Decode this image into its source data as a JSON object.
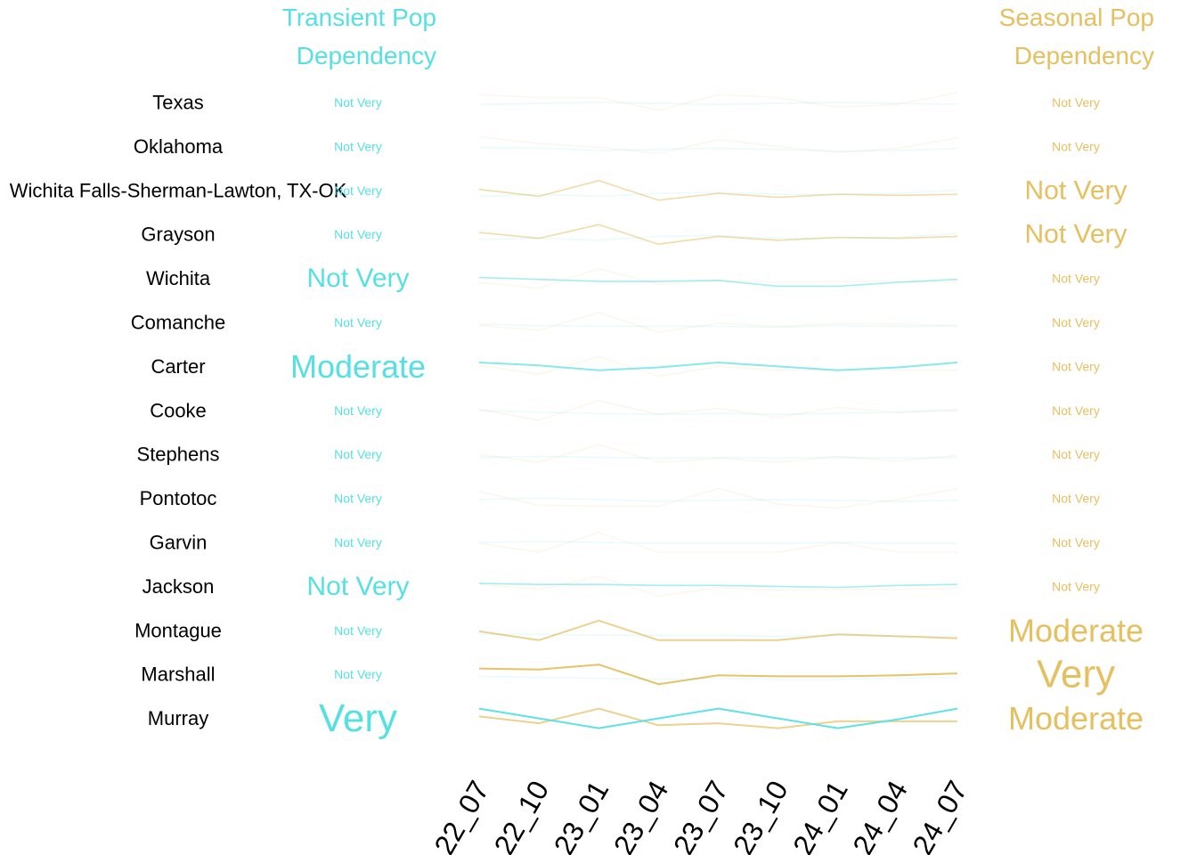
{
  "headers": {
    "transient_line1": "Transient Pop",
    "transient_line2": "Dependency",
    "seasonal_line1": "Seasonal Pop",
    "seasonal_line2": "Dependency"
  },
  "colors": {
    "transient": "#55e0e3",
    "seasonal": "#e6bf5f",
    "region_text": "#000000",
    "background": "#ffffff"
  },
  "chart_data": {
    "type": "line",
    "x": [
      "22_07",
      "22_10",
      "23_01",
      "23_04",
      "23_07",
      "23_10",
      "24_01",
      "24_04",
      "24_07"
    ],
    "legend": "none",
    "grid": false,
    "rows": [
      {
        "region": "Texas",
        "transient_label": "Not Very",
        "seasonal_label": "Not Very",
        "transient": [
          0.4,
          0.45,
          0.5,
          0.45,
          0.4,
          0.45,
          0.5,
          0.45,
          0.4
        ],
        "seasonal": [
          0.9,
          0.75,
          0.75,
          0.1,
          0.9,
          0.75,
          0.25,
          0.4,
          1.0
        ]
      },
      {
        "region": "Oklahoma",
        "transient_label": "Not Very",
        "seasonal_label": "Not Very",
        "transient": [
          0.45,
          0.4,
          0.3,
          0.35,
          0.4,
          0.35,
          0.25,
          0.3,
          0.4
        ],
        "seasonal": [
          1.0,
          0.65,
          0.45,
          0.15,
          0.85,
          0.5,
          0.2,
          0.4,
          0.95
        ]
      },
      {
        "region": "Wichita Falls-Sherman-Lawton, TX-OK",
        "transient_label": "Not Very",
        "seasonal_label": "Not Very",
        "transient": [
          0.2,
          0.3,
          0.2,
          0.35,
          0.4,
          0.3,
          0.3,
          0.35,
          0.5
        ],
        "seasonal": [
          0.55,
          0.2,
          1.0,
          0.0,
          0.35,
          0.15,
          0.3,
          0.25,
          0.3
        ]
      },
      {
        "region": "Grayson",
        "transient_label": "Not Very",
        "seasonal_label": "Not Very",
        "transient": [
          0.25,
          0.3,
          0.2,
          0.4,
          0.45,
          0.3,
          0.3,
          0.35,
          0.55
        ],
        "seasonal": [
          0.6,
          0.3,
          1.0,
          0.0,
          0.4,
          0.2,
          0.35,
          0.3,
          0.4
        ]
      },
      {
        "region": "Wichita",
        "transient_label": "Not Very",
        "seasonal_label": "Not Very",
        "transient": [
          0.55,
          0.45,
          0.35,
          0.35,
          0.4,
          0.1,
          0.1,
          0.3,
          0.45
        ],
        "seasonal": [
          0.3,
          0.0,
          1.0,
          0.2,
          0.4,
          0.3,
          0.35,
          0.35,
          0.3
        ]
      },
      {
        "region": "Comanche",
        "transient_label": "Not Very",
        "seasonal_label": "Not Very",
        "transient": [
          0.4,
          0.35,
          0.3,
          0.3,
          0.3,
          0.25,
          0.35,
          0.3,
          0.3
        ],
        "seasonal": [
          0.35,
          0.1,
          1.0,
          0.0,
          0.45,
          0.3,
          0.45,
          0.4,
          0.35
        ]
      },
      {
        "region": "Carter",
        "transient_label": "Moderate",
        "seasonal_label": "Not Very",
        "transient": [
          0.7,
          0.55,
          0.3,
          0.45,
          0.7,
          0.5,
          0.3,
          0.45,
          0.7
        ],
        "seasonal": [
          0.55,
          0.1,
          1.0,
          0.0,
          0.5,
          0.3,
          0.35,
          0.3,
          0.3
        ]
      },
      {
        "region": "Cooke",
        "transient_label": "Not Very",
        "seasonal_label": "Not Very",
        "transient": [
          0.5,
          0.4,
          0.35,
          0.3,
          0.35,
          0.3,
          0.35,
          0.4,
          0.5
        ],
        "seasonal": [
          0.55,
          0.0,
          1.0,
          0.3,
          0.6,
          0.15,
          0.65,
          0.4,
          0.55
        ]
      },
      {
        "region": "Stephens",
        "transient_label": "Not Very",
        "seasonal_label": "Not Very",
        "transient": [
          0.35,
          0.4,
          0.35,
          0.3,
          0.35,
          0.3,
          0.35,
          0.3,
          0.35
        ],
        "seasonal": [
          0.5,
          0.1,
          1.0,
          0.1,
          0.3,
          0.1,
          0.4,
          0.15,
          0.45
        ]
      },
      {
        "region": "Pontotoc",
        "transient_label": "Not Very",
        "seasonal_label": "Not Very",
        "transient": [
          0.45,
          0.5,
          0.45,
          0.35,
          0.4,
          0.45,
          0.4,
          0.35,
          0.4
        ],
        "seasonal": [
          0.85,
          0.15,
          0.1,
          0.1,
          1.0,
          0.2,
          0.0,
          0.45,
          1.0
        ]
      },
      {
        "region": "Garvin",
        "transient_label": "Not Very",
        "seasonal_label": "Not Very",
        "transient": [
          0.5,
          0.55,
          0.5,
          0.45,
          0.45,
          0.45,
          0.5,
          0.45,
          0.45
        ],
        "seasonal": [
          0.45,
          0.0,
          1.0,
          0.0,
          0.0,
          0.0,
          0.5,
          0.0,
          0.0
        ]
      },
      {
        "region": "Jackson",
        "transient_label": "Not Very",
        "seasonal_label": "Not Very",
        "transient": [
          0.65,
          0.6,
          0.6,
          0.55,
          0.55,
          0.5,
          0.45,
          0.55,
          0.6
        ],
        "seasonal": [
          0.6,
          0.35,
          1.0,
          0.0,
          0.45,
          0.3,
          0.35,
          0.35,
          0.4
        ]
      },
      {
        "region": "Montague",
        "transient_label": "Not Very",
        "seasonal_label": "Moderate",
        "transient": [
          0.3,
          0.3,
          0.25,
          0.25,
          0.25,
          0.2,
          0.25,
          0.2,
          0.2
        ],
        "seasonal": [
          0.45,
          0.0,
          1.0,
          0.0,
          0.0,
          0.0,
          0.3,
          0.2,
          0.1
        ]
      },
      {
        "region": "Marshall",
        "transient_label": "Not Very",
        "seasonal_label": "Very",
        "transient": [
          0.4,
          0.35,
          0.3,
          0.25,
          0.3,
          0.25,
          0.25,
          0.3,
          0.35
        ],
        "seasonal": [
          0.8,
          0.75,
          1.0,
          0.0,
          0.45,
          0.4,
          0.4,
          0.45,
          0.55
        ]
      },
      {
        "region": "Murray",
        "transient_label": "Very",
        "seasonal_label": "Moderate",
        "transient": [
          1.0,
          0.5,
          0.0,
          0.5,
          1.0,
          0.5,
          0.0,
          0.45,
          1.0
        ],
        "seasonal": [
          0.6,
          0.25,
          1.0,
          0.15,
          0.25,
          0.0,
          0.35,
          0.35,
          0.35
        ]
      }
    ]
  }
}
